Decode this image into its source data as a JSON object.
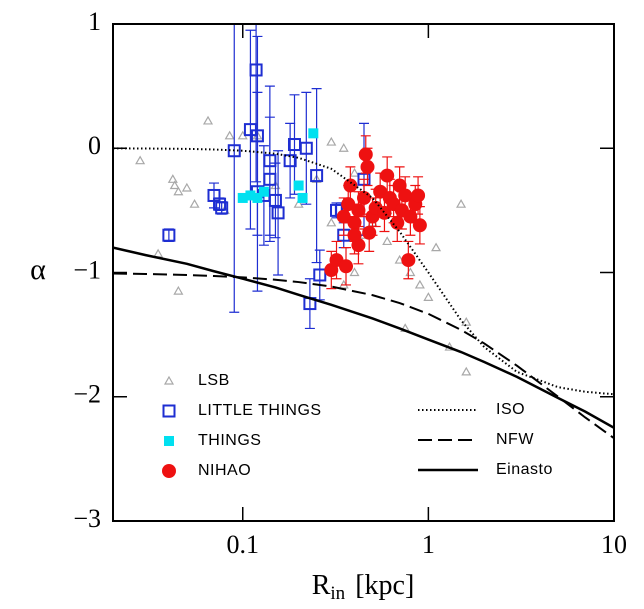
{
  "chart_data": {
    "type": "scatter",
    "ylabel": "α",
    "xlabel": "R",
    "xlabel_sub": "in",
    "xlabel_unit": "[kpc]",
    "xlog": true,
    "xlim": [
      0.02,
      10
    ],
    "ylim": [
      -3,
      1
    ],
    "xticks": [
      0.1,
      1,
      10
    ],
    "yticks": [
      {
        "value": -3,
        "label": "−3"
      },
      {
        "value": -2,
        "label": "−2"
      },
      {
        "value": -1,
        "label": "−1"
      },
      0,
      1
    ],
    "series": [
      {
        "name": "LSB",
        "color": "#a8a8a8",
        "marker": "open-triangle",
        "x": [
          0.028,
          0.042,
          0.043,
          0.045,
          0.05,
          0.055,
          0.065,
          0.08,
          0.1,
          0.085,
          0.035,
          0.045,
          0.12,
          0.15,
          0.2,
          0.25,
          0.3,
          0.35,
          0.4,
          0.5,
          0.6,
          0.7,
          0.8,
          0.9,
          1.0,
          1.5,
          1.6,
          1.6,
          0.75,
          0.35,
          0.45,
          0.3,
          0.4,
          0.6,
          1.1,
          1.3
        ],
        "values": [
          -0.1,
          -0.25,
          -0.3,
          -0.35,
          -0.32,
          -0.45,
          0.22,
          -0.5,
          0.1,
          0.1,
          -0.85,
          -1.15,
          0.1,
          -0.3,
          -0.45,
          -0.25,
          0.05,
          0.0,
          -0.2,
          -0.6,
          -0.75,
          -0.9,
          -1.0,
          -1.1,
          -1.2,
          -0.45,
          -1.4,
          -1.8,
          -1.45,
          -1.1,
          -0.7,
          -0.6,
          -1.0,
          -0.5,
          -0.8,
          -1.6
        ]
      },
      {
        "name": "LITTLE THINGS",
        "color": "#1e2ed2",
        "marker": "open-square",
        "x": [
          0.04,
          0.07,
          0.075,
          0.077,
          0.09,
          0.11,
          0.118,
          0.12,
          0.12,
          0.13,
          0.14,
          0.14,
          0.15,
          0.155,
          0.18,
          0.19,
          0.22,
          0.23,
          0.25,
          0.26,
          0.32,
          0.34,
          0.35,
          0.45
        ],
        "values": [
          -0.7,
          -0.38,
          -0.45,
          -0.48,
          -0.02,
          0.15,
          0.63,
          -0.35,
          0.1,
          -0.38,
          -0.1,
          -0.25,
          -0.42,
          -0.52,
          -0.1,
          0.03,
          0.0,
          -1.25,
          -0.22,
          -1.02,
          -0.5,
          -0.5,
          -0.7,
          -0.25
        ],
        "errors": [
          0.05,
          0.1,
          0.05,
          0.05,
          1.3,
          0.8,
          0.9,
          0.8,
          0.8,
          0.4,
          0.6,
          0.5,
          0.3,
          0.5,
          0.3,
          0.4,
          0.45,
          0.2,
          0.7,
          0.2,
          0.06,
          0.06,
          0.1,
          0.45
        ]
      },
      {
        "name": "THINGS",
        "color": "#00e0f0",
        "marker": "filled-square",
        "x": [
          0.1,
          0.12,
          0.13,
          0.2,
          0.21,
          0.24,
          0.11
        ],
        "values": [
          -0.4,
          -0.4,
          -0.35,
          -0.3,
          -0.4,
          0.12,
          -0.38
        ]
      },
      {
        "name": "NIHAO",
        "color": "#ee1111",
        "marker": "circle",
        "x": [
          0.3,
          0.32,
          0.35,
          0.37,
          0.38,
          0.4,
          0.42,
          0.42,
          0.45,
          0.46,
          0.47,
          0.48,
          0.5,
          0.52,
          0.55,
          0.58,
          0.6,
          0.62,
          0.65,
          0.68,
          0.7,
          0.72,
          0.75,
          0.78,
          0.8,
          0.85,
          0.88,
          0.9,
          0.4,
          0.36
        ],
        "values": [
          -0.98,
          -0.9,
          -0.55,
          -0.45,
          -0.3,
          -0.6,
          -0.78,
          -0.5,
          -0.4,
          -0.05,
          -0.15,
          -0.68,
          -0.55,
          -0.48,
          -0.35,
          -0.52,
          -0.22,
          -0.4,
          -0.45,
          -0.6,
          -0.3,
          -0.5,
          -0.38,
          -0.9,
          -0.55,
          -0.45,
          -0.38,
          -0.62,
          -0.7,
          -0.95
        ],
        "errors": [
          0.15,
          0.15,
          0.15,
          0.15,
          0.15,
          0.15,
          0.15,
          0.15,
          0.15,
          0.15,
          0.15,
          0.15,
          0.15,
          0.15,
          0.15,
          0.15,
          0.15,
          0.15,
          0.15,
          0.15,
          0.15,
          0.15,
          0.15,
          0.15,
          0.15,
          0.15,
          0.15,
          0.15,
          0.15,
          0.15
        ]
      },
      {
        "name": "ISO",
        "color": "#000000",
        "marker": "dotted",
        "x": [
          0.02,
          0.03,
          0.05,
          0.07,
          0.1,
          0.15,
          0.2,
          0.3,
          0.5,
          0.7,
          1,
          1.5,
          2,
          3,
          5,
          7,
          10
        ],
        "values": [
          -0.001,
          -0.002,
          -0.005,
          -0.01,
          -0.02,
          -0.044,
          -0.077,
          -0.165,
          -0.4,
          -0.671,
          -1,
          -1.385,
          -1.6,
          -1.8,
          -1.923,
          -1.96,
          -1.98
        ]
      },
      {
        "name": "NFW",
        "color": "#000000",
        "marker": "dashed",
        "x": [
          0.02,
          0.03,
          0.05,
          0.07,
          0.1,
          0.15,
          0.2,
          0.3,
          0.5,
          0.7,
          1,
          1.5,
          2,
          3,
          5,
          7,
          10
        ],
        "values": [
          -1.008,
          -1.012,
          -1.02,
          -1.028,
          -1.039,
          -1.058,
          -1.077,
          -1.113,
          -1.182,
          -1.246,
          -1.333,
          -1.462,
          -1.571,
          -1.75,
          -2,
          -2.167,
          -2.333
        ]
      },
      {
        "name": "Einasto",
        "color": "#000000",
        "marker": "solid",
        "x": [
          0.02,
          0.03,
          0.05,
          0.07,
          0.1,
          0.15,
          0.2,
          0.3,
          0.5,
          0.7,
          1,
          1.5,
          2,
          3,
          5,
          7,
          10
        ],
        "values": [
          -0.8,
          -0.86,
          -0.93,
          -0.99,
          -1.05,
          -1.12,
          -1.18,
          -1.26,
          -1.37,
          -1.45,
          -1.54,
          -1.64,
          -1.72,
          -1.84,
          -2.01,
          -2.12,
          -2.25
        ]
      }
    ]
  }
}
